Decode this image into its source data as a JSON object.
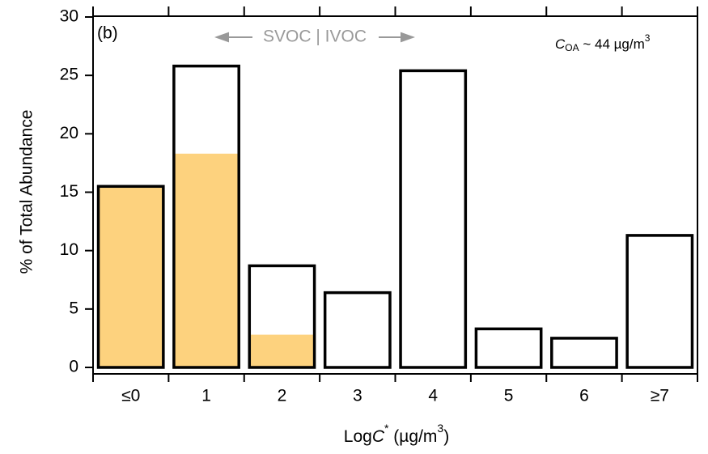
{
  "chart_data": {
    "type": "bar",
    "panel_label": "(b)",
    "annotations": {
      "volatility": "SVOC | IVOC",
      "concentration": [
        "C",
        "OA",
        " ~ 44 µg/m",
        "3"
      ]
    },
    "ylabel": "% of Total Abundance",
    "xlabel": [
      "Log",
      "C",
      "*",
      " (µg/m",
      "3",
      ")"
    ],
    "categories": [
      "≤0",
      "1",
      "2",
      "3",
      "4",
      "5",
      "6",
      "≥7"
    ],
    "series": [
      {
        "color": "#ffffff",
        "values": [
          15.5,
          25.8,
          8.7,
          6.4,
          25.4,
          3.3,
          2.5,
          11.3
        ]
      },
      {
        "color": "#fdd27e",
        "values": [
          15.5,
          18.3,
          2.8,
          0,
          0,
          0,
          0,
          0
        ]
      }
    ],
    "ylim": [
      0,
      30
    ],
    "yticks": [
      0,
      5,
      10,
      15,
      20,
      25,
      30
    ]
  }
}
